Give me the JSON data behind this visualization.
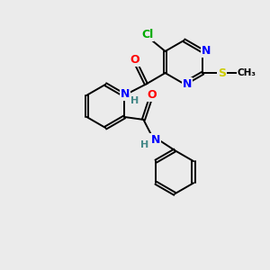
{
  "bg_color": "#ebebeb",
  "atom_colors": {
    "N": "#0000ff",
    "O": "#ff0000",
    "S": "#cccc00",
    "Cl": "#00aa00",
    "H": "#448888"
  },
  "bond_color": "#000000",
  "bond_width": 1.4,
  "dbo": 0.055,
  "figsize": [
    3.0,
    3.0
  ],
  "dpi": 100
}
